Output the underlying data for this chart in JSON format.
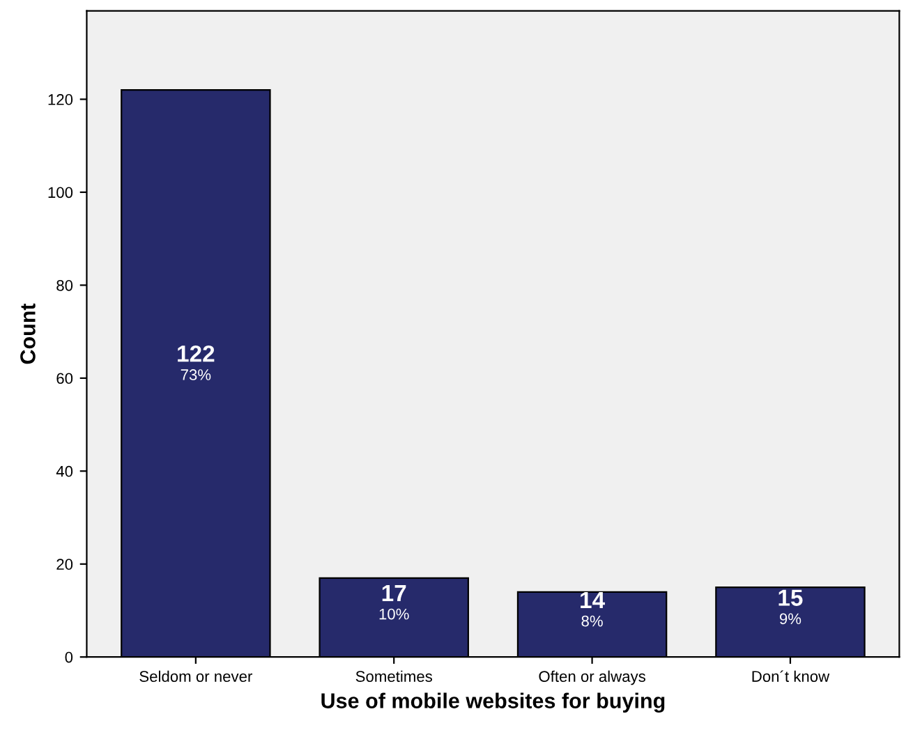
{
  "chart_data": {
    "type": "bar",
    "xlabel": "Use of mobile websites for buying",
    "ylabel": "Count",
    "categories": [
      "Seldom or never",
      "Sometimes",
      "Often or always",
      "Don´t know"
    ],
    "values": [
      122,
      17,
      14,
      15
    ],
    "value_labels": [
      "122\n73%",
      "17\n10%",
      "14\n8%",
      "15\n9%"
    ],
    "color": "#262a6b",
    "ylim": [
      0,
      139
    ],
    "yticks": [
      0,
      20,
      40,
      60,
      80,
      100,
      120
    ],
    "grid": false
  }
}
